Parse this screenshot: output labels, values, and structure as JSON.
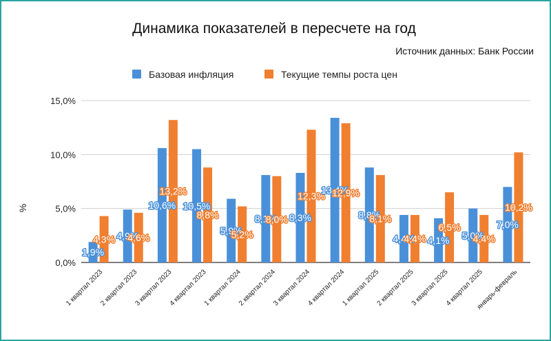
{
  "chart_data": {
    "type": "bar",
    "title": "Динамика показателей в пересчете на год",
    "subtitle": "Источник данных: Банк России",
    "ylabel": "%",
    "xlabel": "",
    "ylim": [
      0,
      15
    ],
    "yticks": [
      "0,0%",
      "5,0%",
      "10,0%",
      "15,0%"
    ],
    "ytick_values": [
      0,
      5,
      10,
      15
    ],
    "grid": true,
    "legend_position": "top",
    "categories": [
      "1 квартал 2023",
      "2 квартал 2023",
      "3 квартал 2023",
      "4 квартал 2023",
      "1 квартал 2024",
      "2 квартал 2024",
      "3 квартал 2024",
      "4 квартал 2024",
      "1 квартал 2025",
      "2 квартал 2025",
      "3 квартал 2025",
      "4 квартал 2025",
      "январь-февраль"
    ],
    "series": [
      {
        "name": "Базовая инфляция",
        "color": "#4a90d9",
        "values": [
          1.9,
          4.9,
          10.6,
          10.5,
          5.9,
          8.1,
          8.3,
          13.4,
          8.8,
          4.4,
          4.1,
          5.0,
          7.0
        ],
        "labels": [
          "1,9%",
          "4,9%",
          "10,6%",
          "10,5%",
          "5,9%",
          "8,1%",
          "8,3%",
          "13,4%",
          "8,8%",
          "4,4%",
          "4,1%",
          "5,0%",
          "7,0%"
        ]
      },
      {
        "name": "Текущие темпы роста цен",
        "color": "#f07f30",
        "values": [
          4.3,
          4.6,
          13.2,
          8.8,
          5.2,
          8.0,
          12.3,
          12.9,
          8.1,
          4.4,
          6.5,
          4.4,
          10.2
        ],
        "labels": [
          "4,3%",
          "4,6%",
          "13,2%",
          "8,8%",
          "5,2%",
          "8,0%",
          "12,3%",
          "12,9%",
          "8,1%",
          "4,4%",
          "6,5%",
          "4,4%",
          "10,2%"
        ]
      }
    ]
  }
}
